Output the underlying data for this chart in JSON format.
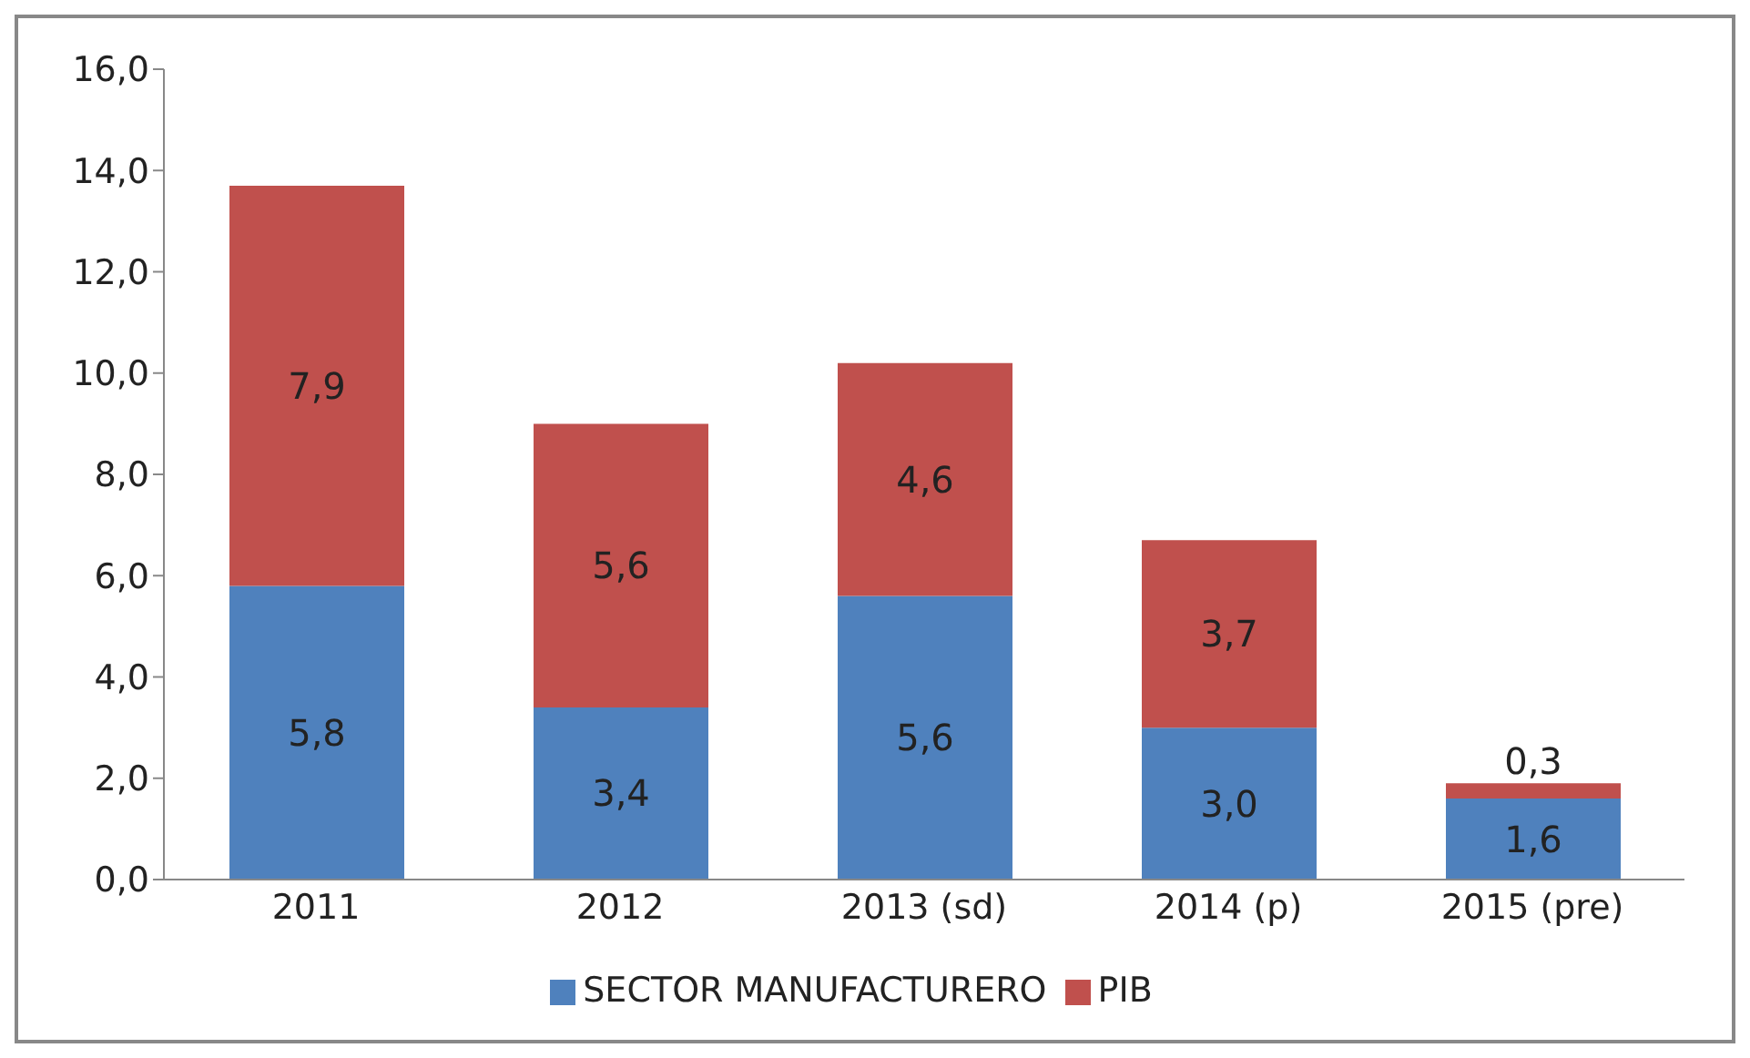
{
  "chart_data": {
    "type": "bar",
    "stacked": true,
    "categories": [
      "2011",
      "2012",
      "2013 (sd)",
      "2014 (p)",
      "2015 (pre)"
    ],
    "series": [
      {
        "name": "SECTOR MANUFACTURERO",
        "color": "#4f81bd",
        "values": [
          5.8,
          3.4,
          5.6,
          3.0,
          1.6
        ],
        "value_labels": [
          "5,8",
          "3,4",
          "5,6",
          "3,0",
          "1,6"
        ]
      },
      {
        "name": "PIB",
        "color": "#c0504d",
        "values": [
          7.9,
          5.6,
          4.6,
          3.7,
          0.3
        ],
        "value_labels": [
          "7,9",
          "5,6",
          "4,6",
          "3,7",
          "0,3"
        ]
      }
    ],
    "ylim": [
      0,
      16
    ],
    "yticks": [
      {
        "value": 0,
        "label": "0,0"
      },
      {
        "value": 2,
        "label": "2,0"
      },
      {
        "value": 4,
        "label": "4,0"
      },
      {
        "value": 6,
        "label": "6,0"
      },
      {
        "value": 8,
        "label": "8,0"
      },
      {
        "value": 10,
        "label": "10,0"
      },
      {
        "value": 12,
        "label": "12,0"
      },
      {
        "value": 14,
        "label": "14,0"
      },
      {
        "value": 16,
        "label": "16,0"
      }
    ],
    "grid": false,
    "legend": "bottom"
  }
}
